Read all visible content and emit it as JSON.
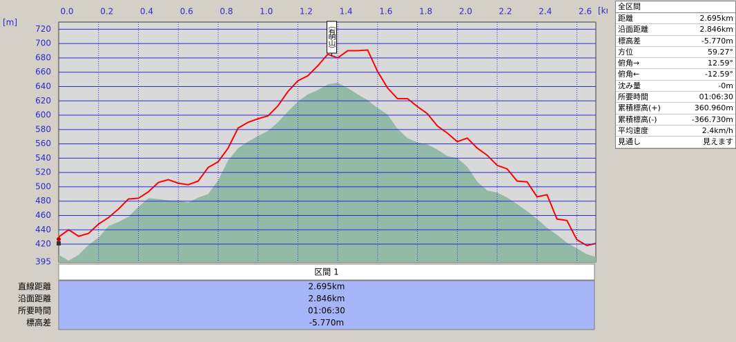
{
  "chart_data": {
    "type": "line",
    "x": [
      0,
      0.05,
      0.1,
      0.15,
      0.2,
      0.25,
      0.3,
      0.35,
      0.4,
      0.45,
      0.5,
      0.55,
      0.6,
      0.65,
      0.7,
      0.75,
      0.8,
      0.85,
      0.9,
      0.95,
      1.0,
      1.05,
      1.1,
      1.15,
      1.2,
      1.25,
      1.3,
      1.35,
      1.4,
      1.45,
      1.5,
      1.55,
      1.6,
      1.65,
      1.7,
      1.75,
      1.8,
      1.85,
      1.9,
      1.95,
      2.0,
      2.05,
      2.1,
      2.15,
      2.2,
      2.25,
      2.3,
      2.35,
      2.4,
      2.45,
      2.5,
      2.55,
      2.6,
      2.65,
      2.695
    ],
    "xlim": [
      0,
      2.695
    ],
    "xticks": [
      {
        "value": 0,
        "label": "0.0"
      },
      0.2,
      0.4,
      0.6,
      0.8,
      {
        "value": 1,
        "label": "1.0"
      },
      1.2,
      1.4,
      1.6,
      1.8,
      {
        "value": 2,
        "label": "2.0"
      },
      2.2,
      2.4,
      2.6
    ],
    "x_unit": "[km]",
    "y_unit": "[m]",
    "ylim": [
      395,
      730
    ],
    "yticks": [
      395,
      420,
      440,
      460,
      480,
      500,
      520,
      540,
      560,
      580,
      600,
      620,
      640,
      660,
      680,
      700,
      720
    ],
    "grid": true,
    "series": [
      {
        "type": "area",
        "color": "#93b9a7",
        "values": [
          405,
          397,
          405,
          419,
          429,
          445,
          451,
          458,
          472,
          484,
          483,
          481,
          481,
          478,
          485,
          490,
          509,
          537,
          554,
          563,
          571,
          578,
          590,
          605,
          619,
          629,
          635,
          643,
          645,
          638,
          629,
          621,
          610,
          601,
          581,
          568,
          562,
          559,
          552,
          543,
          540,
          528,
          507,
          495,
          492,
          485,
          476,
          466,
          455,
          443,
          433,
          422,
          414,
          406,
          402
        ]
      },
      {
        "type": "line",
        "color": "#ff0000",
        "values": [
          430,
          440,
          431,
          435,
          448,
          457,
          469,
          483,
          484,
          493,
          506,
          510,
          505,
          503,
          508,
          527,
          535,
          554,
          582,
          590,
          595,
          599,
          613,
          633,
          648,
          655,
          669,
          685,
          680,
          690,
          690,
          691,
          661,
          638,
          623,
          623,
          612,
          602,
          585,
          575,
          563,
          568,
          554,
          544,
          530,
          525,
          508,
          507,
          486,
          489,
          455,
          453,
          426,
          418,
          421
        ]
      }
    ],
    "annotations": [
      {
        "x": 1.37,
        "text": "（有明山）"
      }
    ]
  },
  "section_table": {
    "header": "区間 1",
    "rows": [
      [
        "直線距離",
        "2.695km"
      ],
      [
        "沿面距離",
        "2.846km"
      ],
      [
        "所要時間",
        "01:06:30"
      ],
      [
        "標高差",
        "-5.770m"
      ]
    ]
  },
  "summary_panel": {
    "title": "全区間",
    "rows": [
      [
        "距離",
        "2.695km"
      ],
      [
        "沿面距離",
        "2.846km"
      ],
      [
        "標高差",
        "-5.770m"
      ],
      [
        "方位",
        "59.27°"
      ],
      [
        "俯角→",
        "12.59°"
      ],
      [
        "俯角←",
        "-12.59°"
      ],
      [
        "沈み量",
        "-0m"
      ],
      [
        "所要時間",
        "01:06:30"
      ],
      [
        "累積標高(+)",
        "360.960m"
      ],
      [
        "累積標高(-)",
        "-366.730m"
      ],
      [
        "平均速度",
        "2.4km/h"
      ],
      [
        "見通し",
        "見えます"
      ]
    ]
  }
}
